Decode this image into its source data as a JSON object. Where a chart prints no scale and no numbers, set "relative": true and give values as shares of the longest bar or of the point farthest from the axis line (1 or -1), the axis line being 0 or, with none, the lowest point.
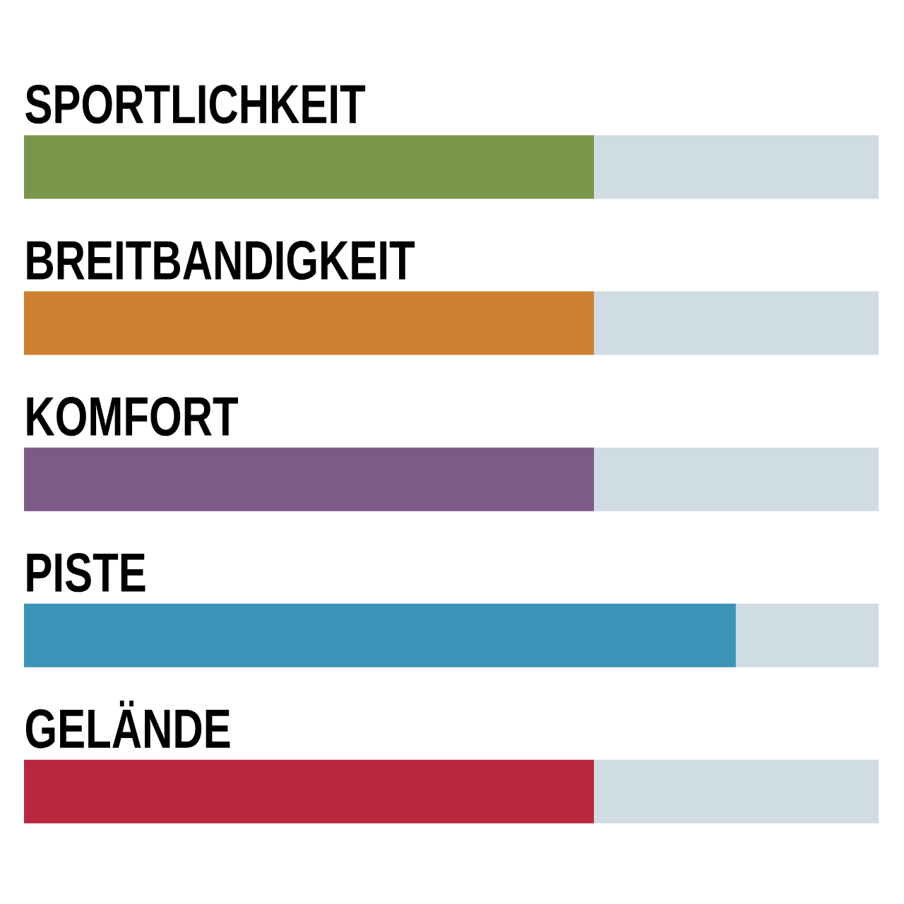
{
  "chart_data": {
    "type": "bar",
    "orientation": "horizontal",
    "stacked": true,
    "relative": true,
    "categories": [
      "SPORTLICHKEIT",
      "BREITBANDIGKEIT",
      "KOMFORT",
      "PISTE",
      "GELÄNDE"
    ],
    "series": [
      {
        "colors": [
          "#7a964a",
          "#cd7f32",
          "#7d5a87",
          "#3b93b8",
          "#b8283e"
        ],
        "values": [
          0.667,
          0.667,
          0.667,
          0.833,
          0.667
        ]
      },
      {
        "color": "#d0dce4",
        "values": [
          0.333,
          0.333,
          0.333,
          0.167,
          0.333
        ]
      }
    ]
  }
}
